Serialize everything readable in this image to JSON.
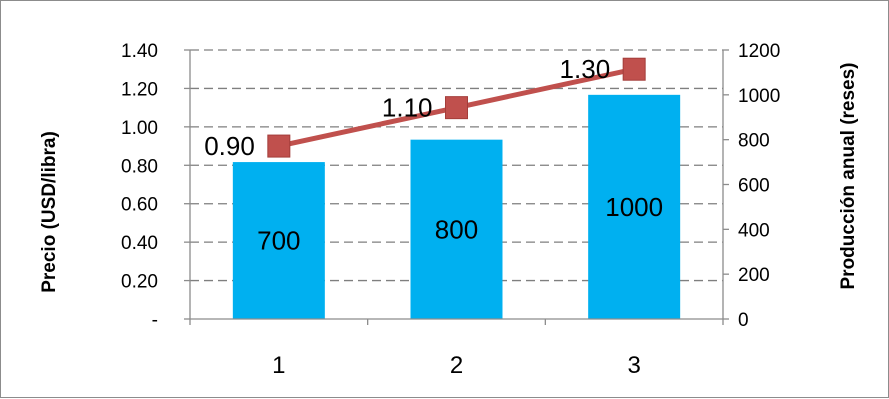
{
  "chart_data": {
    "type": "bar",
    "categories": [
      "1",
      "2",
      "3"
    ],
    "series": [
      {
        "values": [
          700,
          800,
          1000
        ],
        "kind": "bar",
        "axis": "right",
        "color": "#00b0f0"
      },
      {
        "values": [
          0.9,
          1.1,
          1.3
        ],
        "kind": "line",
        "axis": "left",
        "color": "#c0504d"
      }
    ],
    "bar_labels": [
      "700",
      "800",
      "1000"
    ],
    "line_labels": [
      "0.90",
      "1.10",
      "1.30"
    ],
    "ylabel_left": "Precio (USD/libra)",
    "ylabel_right": "Producción anual (reses)",
    "ylim_left": [
      0,
      1.4
    ],
    "ylim_right": [
      0,
      1200
    ],
    "yticks_left": [
      "-",
      "0.20",
      "0.40",
      "0.60",
      "0.80",
      "1.00",
      "1.20",
      "1.40"
    ],
    "yticks_right": [
      "0",
      "200",
      "400",
      "600",
      "800",
      "1000",
      "1200"
    ],
    "grid": true,
    "legend": "none"
  }
}
